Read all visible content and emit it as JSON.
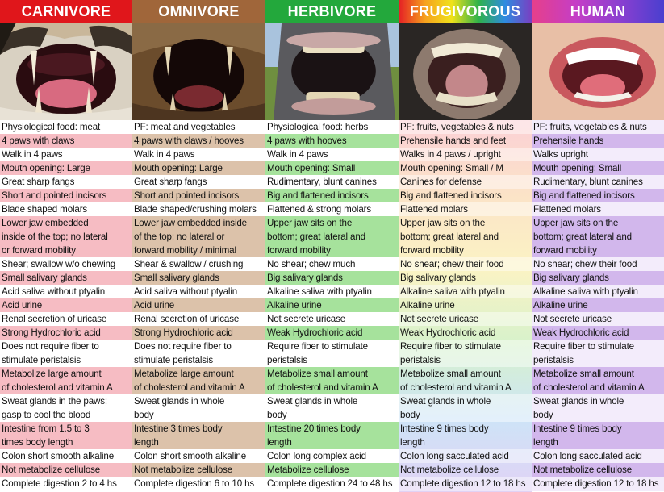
{
  "headers": [
    {
      "label": "CARNIVORE",
      "color": "#e0161b"
    },
    {
      "label": "OMNIVORE",
      "color": "#a0663a"
    },
    {
      "label": "HERBIVORE",
      "color": "#23a83c"
    },
    {
      "label": "FRUGIVOROUS",
      "color": "rainbow"
    },
    {
      "label": "HUMAN",
      "color": "rainbow-purple"
    }
  ],
  "photos": [
    {
      "icon": "tiger-mouth-icon"
    },
    {
      "icon": "bear-mouth-icon"
    },
    {
      "icon": "horse-mouth-icon"
    },
    {
      "icon": "chimp-mouth-icon"
    },
    {
      "icon": "human-mouth-icon"
    }
  ],
  "row_colors": {
    "carnivore": [
      "#ffffff",
      "#f6bcc3"
    ],
    "omnivore": [
      "#ffffff",
      "#dcc2aa"
    ],
    "herbivore": [
      "#ffffff",
      "#a6e29c"
    ],
    "frugivorous": [
      "#ffffff",
      "#f3b7d3"
    ],
    "human": [
      "#ffffff",
      "#d2b7ec"
    ]
  },
  "columns": [
    {
      "name": "carnivore",
      "cells": [
        "Physiological food: meat",
        "4 paws with claws",
        "Walk in 4 paws",
        "Mouth opening: Large",
        "Great sharp fangs",
        "Short and pointed incisors",
        "Blade shaped molars",
        "Lower jaw embedded\ninside of the top; no lateral\nor forward mobility",
        "Shear; swallow w/o chewing",
        "Small salivary glands",
        "Acid saliva without ptyalin",
        "Acid urine",
        "Renal secretion of uricase",
        "Strong Hydrochloric acid",
        "Does not require fiber to\nstimulate peristalsis",
        "Metabolize large amount\nof cholesterol and vitamin A",
        "Sweat glands in the paws;\ngasp to cool the blood",
        "Intestine from 1.5 to 3\ntimes body length",
        "Colon short smooth alkaline",
        "Not metabolize cellulose",
        "Complete digestion 2 to 4 hs"
      ]
    },
    {
      "name": "omnivore",
      "cells": [
        "PF: meat and vegetables",
        "4 paws with claws / hooves",
        "Walk in 4 paws",
        "Mouth opening: Large",
        "Great sharp fangs",
        "Short and pointed incisors",
        "Blade shaped/crushing molars",
        "Lower jaw embedded inside\nof the top; no lateral or\nforward mobility / minimal",
        "Shear & swallow / crushing",
        "Small salivary glands",
        "Acid saliva without ptyalin",
        "Acid urine",
        "Renal secretion of uricase",
        "Strong Hydrochloric acid",
        "Does not require fiber to\nstimulate peristalsis",
        "Metabolize large amount\nof cholesterol and vitamin A",
        "Sweat glands in whole\nbody",
        "Intestine 3 times body\nlength",
        "Colon short smooth alkaline",
        "Not metabolize cellulose",
        "Complete digestion 6 to 10 hs"
      ]
    },
    {
      "name": "herbivore",
      "cells": [
        "Physiological food: herbs",
        "4 paws with hooves",
        "Walk in 4 paws",
        "Mouth opening: Small",
        "Rudimentary, blunt canines",
        "Big and flattened incisors",
        "Flattened & strong molars",
        "Upper jaw sits on the\nbottom; great lateral and\nforward mobility",
        "No shear; chew much",
        "Big salivary glands",
        "Alkaline saliva with ptyalin",
        "Alkaline urine",
        "Not secrete uricase",
        "Weak Hydrochloric acid",
        "Require fiber to stimulate\nperistalsis",
        "Metabolize small amount\nof cholesterol and vitamin A",
        "Sweat glands in whole\nbody",
        "Intestine 20 times body\nlength",
        "Colon long complex acid",
        "Metabolize cellulose",
        "Complete digestion 24 to 48 hs"
      ]
    },
    {
      "name": "frugivorous",
      "cells": [
        "PF: fruits, vegetables & nuts",
        "Prehensile hands and feet",
        "Walks in 4 paws / upright",
        "Mouth opening: Small / M",
        "Canines for defense",
        "Big and flattened incisors",
        "Flattened molars",
        "Upper jaw sits on the\nbottom; great lateral and\nforward mobility",
        "No shear; chew their food",
        "Big salivary glands",
        "Alkaline saliva with ptyalin",
        "Alkaline urine",
        "Not secrete uricase",
        "Weak Hydrochloric acid",
        "Require fiber to stimulate\nperistalsis",
        "Metabolize small amount\nof cholesterol and vitamin A",
        "Sweat glands in whole\nbody",
        "Intestine 9 times body\nlength",
        "Colon long sacculated acid",
        "Not metabolize cellulose",
        "Complete digestion 12 to 18 hs"
      ]
    },
    {
      "name": "human",
      "cells": [
        "PF: fruits, vegetables & nuts",
        "Prehensile hands",
        "Walks upright",
        "Mouth opening: Small",
        "Rudimentary, blunt canines",
        "Big and flattened incisors",
        "Flattened molars",
        "Upper jaw sits on the\nbottom; great lateral and\nforward mobility",
        "No shear; chew their food",
        "Big salivary glands",
        "Alkaline saliva with ptyalin",
        "Alkaline urine",
        "Not secrete uricase",
        "Weak Hydrochloric acid",
        "Require fiber to stimulate\nperistalsis",
        "Metabolize small amount\nof cholesterol and vitamin A",
        "Sweat glands in whole\nbody",
        "Intestine 9 times body\nlength",
        "Colon long sacculated acid",
        "Not metabolize cellulose",
        "Complete digestion 12 to 18 hs"
      ]
    }
  ]
}
